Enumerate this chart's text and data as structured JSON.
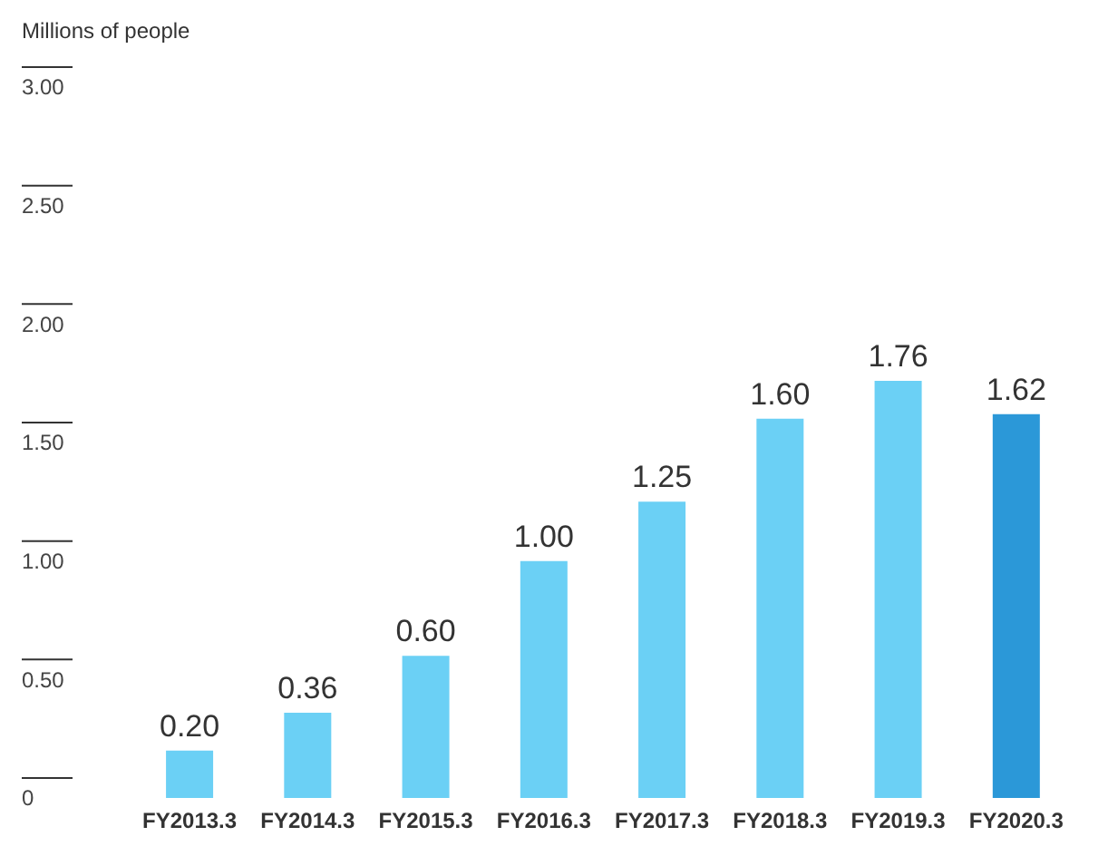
{
  "chart_data": {
    "type": "bar",
    "ylabel": "Millions of people",
    "categories": [
      "FY2013.3",
      "FY2014.3",
      "FY2015.3",
      "FY2016.3",
      "FY2017.3",
      "FY2018.3",
      "FY2019.3",
      "FY2020.3"
    ],
    "values": [
      0.2,
      0.36,
      0.6,
      1.0,
      1.25,
      1.6,
      1.76,
      1.62
    ],
    "colors": [
      "#6bd0f5",
      "#6bd0f5",
      "#6bd0f5",
      "#6bd0f5",
      "#6bd0f5",
      "#6bd0f5",
      "#6bd0f5",
      "#2b98d8"
    ],
    "value_labels": [
      "0.20",
      "0.36",
      "0.60",
      "1.00",
      "1.25",
      "1.60",
      "1.76",
      "1.62"
    ],
    "ylim": [
      0,
      3
    ],
    "yticks": [
      {
        "value": 0,
        "label": "0"
      },
      {
        "value": 0.5,
        "label": "0.50"
      },
      {
        "value": 1,
        "label": "1.00"
      },
      {
        "value": 1.5,
        "label": "1.50"
      },
      {
        "value": 2,
        "label": "2.00"
      },
      {
        "value": 2.5,
        "label": "2.50"
      },
      {
        "value": 3,
        "label": "3.00"
      }
    ],
    "grid": false
  }
}
